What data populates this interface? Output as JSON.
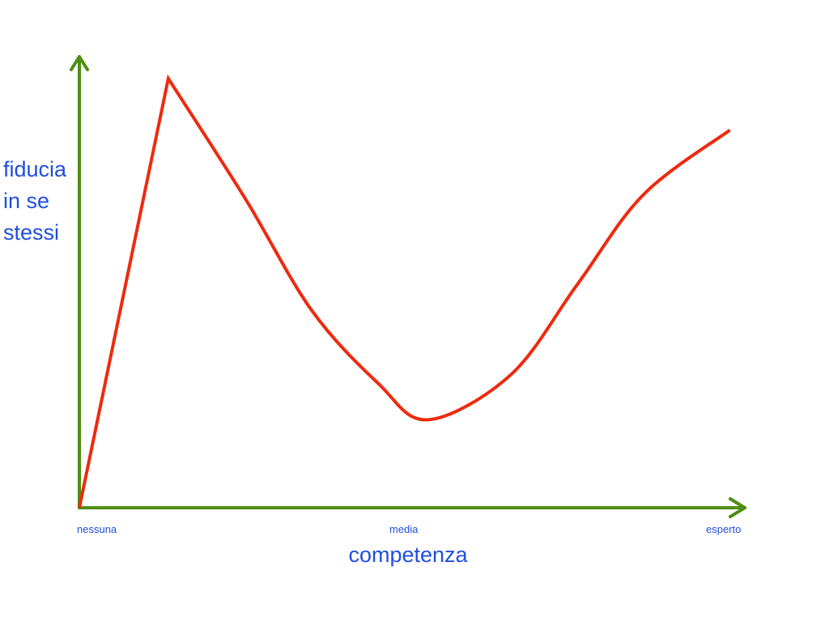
{
  "chart_data": {
    "type": "line",
    "title": "",
    "xlabel": "competenza",
    "ylabel_lines": [
      "fiducia",
      "in se",
      "stessi"
    ],
    "x_ticks": [
      "nessuna",
      "media",
      "esperto"
    ],
    "xlim": [
      0,
      10
    ],
    "ylim": [
      0,
      10
    ],
    "grid": false,
    "legend": "none",
    "series": [
      {
        "x": [
          0,
          1.34,
          2.5,
          3.5,
          4.5,
          5.25,
          6.5,
          7.5,
          8.5,
          9.8
        ],
        "y": [
          0,
          10,
          7.2,
          4.6,
          2.9,
          2.05,
          3.1,
          5.2,
          7.3,
          8.8
        ]
      }
    ],
    "colors": {
      "axis": "#4e8f12",
      "curve": "#ee2a0f",
      "text": "#1f4fe0"
    }
  }
}
